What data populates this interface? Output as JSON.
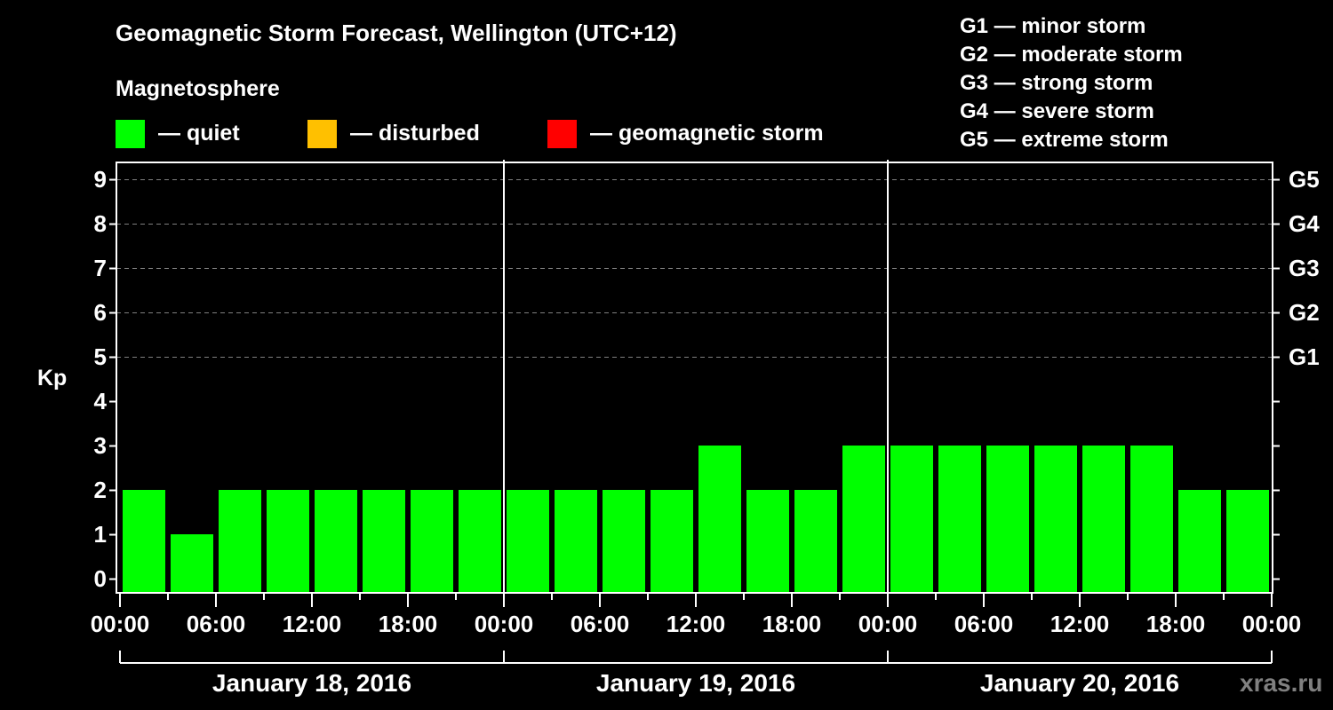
{
  "header": {
    "title": "Geomagnetic Storm Forecast, Wellington (UTC+12)",
    "subtitle": "Magnetosphere"
  },
  "legend": {
    "items": [
      {
        "label": "— quiet",
        "color": "#00ff00"
      },
      {
        "label": "— disturbed",
        "color": "#ffc000"
      },
      {
        "label": "— geomagnetic storm",
        "color": "#ff0000"
      }
    ]
  },
  "storm_scale": {
    "items": [
      "G1 — minor storm",
      "G2 — moderate storm",
      "G3 — strong storm",
      "G4 — severe storm",
      "G5 — extreme storm"
    ]
  },
  "axes": {
    "ylabel": "Kp",
    "yticks": [
      "0",
      "1",
      "2",
      "3",
      "4",
      "5",
      "6",
      "7",
      "8",
      "9"
    ],
    "gticks": [
      {
        "label": "G1",
        "kp": 5
      },
      {
        "label": "G2",
        "kp": 6
      },
      {
        "label": "G3",
        "kp": 7
      },
      {
        "label": "G4",
        "kp": 8
      },
      {
        "label": "G5",
        "kp": 9
      }
    ],
    "xticks": [
      "00:00",
      "06:00",
      "12:00",
      "18:00",
      "00:00",
      "06:00",
      "12:00",
      "18:00",
      "00:00",
      "06:00",
      "12:00",
      "18:00",
      "00:00"
    ],
    "dates": [
      "January 18, 2016",
      "January 19, 2016",
      "January 20, 2016"
    ]
  },
  "watermark": "xras.ru",
  "colors": {
    "quiet": "#00ff00",
    "disturbed": "#ffc000",
    "storm": "#ff0000",
    "grid": "#808080",
    "axis": "#ffffff",
    "background": "#000000"
  },
  "chart_data": {
    "type": "bar",
    "title": "Geomagnetic Storm Forecast, Wellington (UTC+12)",
    "xlabel": "",
    "ylabel": "Kp",
    "ylim": [
      0,
      9
    ],
    "grid": "dashed horizontal at Kp 5-9",
    "legend": [
      "quiet",
      "disturbed",
      "geomagnetic storm"
    ],
    "categories": [
      "Jan 18 00:00",
      "Jan 18 03:00",
      "Jan 18 06:00",
      "Jan 18 09:00",
      "Jan 18 12:00",
      "Jan 18 15:00",
      "Jan 18 18:00",
      "Jan 18 21:00",
      "Jan 19 00:00",
      "Jan 19 03:00",
      "Jan 19 06:00",
      "Jan 19 09:00",
      "Jan 19 12:00",
      "Jan 19 15:00",
      "Jan 19 18:00",
      "Jan 19 21:00",
      "Jan 20 00:00",
      "Jan 20 03:00",
      "Jan 20 06:00",
      "Jan 20 09:00",
      "Jan 20 12:00",
      "Jan 20 15:00",
      "Jan 20 18:00",
      "Jan 20 21:00"
    ],
    "values": [
      2,
      1,
      2,
      2,
      2,
      2,
      2,
      2,
      2,
      2,
      2,
      2,
      3,
      2,
      2,
      3,
      3,
      3,
      3,
      3,
      3,
      3,
      2,
      2
    ],
    "status": [
      "quiet",
      "quiet",
      "quiet",
      "quiet",
      "quiet",
      "quiet",
      "quiet",
      "quiet",
      "quiet",
      "quiet",
      "quiet",
      "quiet",
      "quiet",
      "quiet",
      "quiet",
      "quiet",
      "quiet",
      "quiet",
      "quiet",
      "quiet",
      "quiet",
      "quiet",
      "quiet",
      "quiet"
    ]
  }
}
